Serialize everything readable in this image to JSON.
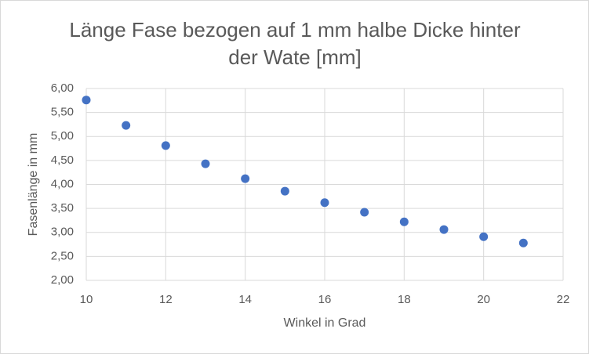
{
  "chart_data": {
    "type": "scatter",
    "title": "Länge Fase bezogen auf 1 mm halbe Dicke hinter der Wate [mm]",
    "x_label": "Winkel in Grad",
    "y_label": "Fasenlänge in mm",
    "x": [
      10,
      11,
      12,
      13,
      14,
      15,
      16,
      17,
      18,
      19,
      20,
      21
    ],
    "values": [
      5.76,
      5.23,
      4.81,
      4.43,
      4.12,
      3.86,
      3.62,
      3.42,
      3.22,
      3.06,
      2.91,
      2.78
    ],
    "color": "#4472c4",
    "xlim": [
      10,
      22
    ],
    "xticks": [
      10,
      12,
      14,
      16,
      18,
      20,
      22
    ],
    "ylim": [
      2,
      6
    ],
    "yticks": [
      {
        "value": 2,
        "label": "2,00"
      },
      {
        "value": 2.5,
        "label": "2,50"
      },
      {
        "value": 3,
        "label": "3,00"
      },
      {
        "value": 3.5,
        "label": "3,50"
      },
      {
        "value": 4,
        "label": "4,00"
      },
      {
        "value": 4.5,
        "label": "4,50"
      },
      {
        "value": 5,
        "label": "5,00"
      },
      {
        "value": 5.5,
        "label": "5,50"
      },
      {
        "value": 6,
        "label": "6,00"
      }
    ],
    "grid": true
  }
}
